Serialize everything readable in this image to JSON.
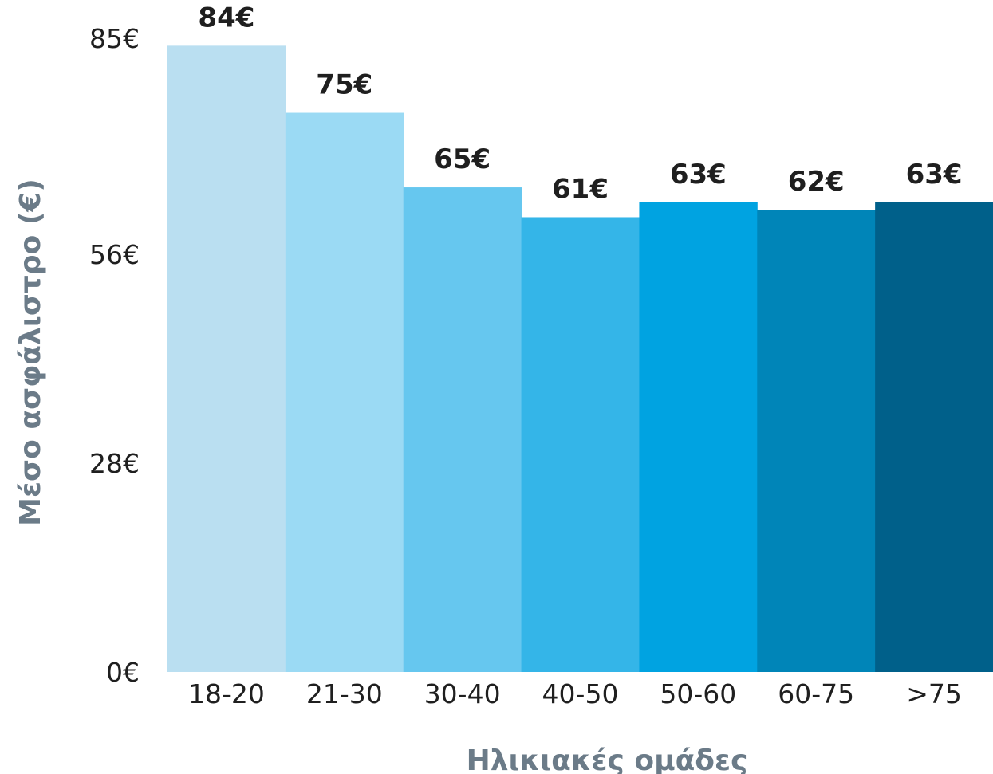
{
  "chart_data": {
    "type": "bar",
    "categories": [
      "18-20",
      "21-30",
      "30-40",
      "40-50",
      "50-60",
      "60-75",
      ">75"
    ],
    "values": [
      84,
      75,
      65,
      61,
      63,
      62,
      63
    ],
    "data_labels": [
      "84€",
      "75€",
      "65€",
      "61€",
      "63€",
      "62€",
      "63€"
    ],
    "bar_colors": [
      "#badff1",
      "#9bdaf4",
      "#66c7ef",
      "#34b5e8",
      "#00a3e1",
      "#0085b8",
      "#00608a"
    ],
    "ylim": [
      0,
      85
    ],
    "yticks": [
      0,
      28,
      56,
      85
    ],
    "ytick_labels": [
      "0€",
      "28€",
      "56€",
      "85€"
    ],
    "xlabel": "Ηλικιακές ομάδες",
    "ylabel": "Μέσο ασφάλιστρο (€)",
    "grid": false,
    "legend": "none"
  }
}
